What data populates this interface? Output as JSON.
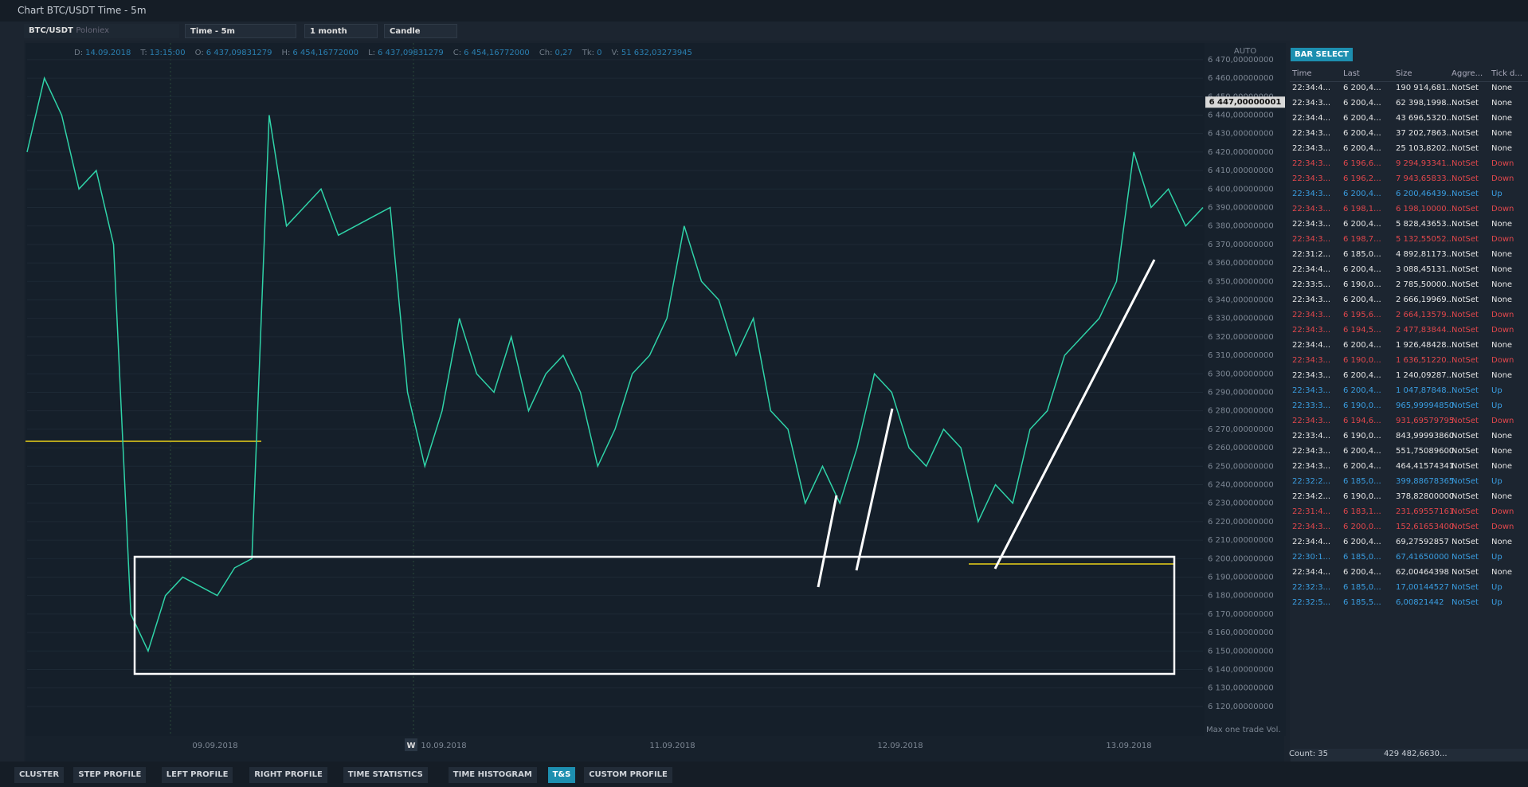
{
  "window": {
    "title": "Chart BTC/USDT Time - 5m"
  },
  "toolbar": {
    "symbol": "BTC/USDT",
    "exchange": "Poloniex",
    "timeframe": "Time - 5m",
    "period": "1 month",
    "style": "Candle"
  },
  "info_bar": [
    {
      "label": "D:",
      "value": "14.09.2018"
    },
    {
      "label": "T:",
      "value": "13:15:00"
    },
    {
      "label": "O:",
      "value": "6 437,09831279"
    },
    {
      "label": "H:",
      "value": "6 454,16772000"
    },
    {
      "label": "L:",
      "value": "6 437,09831279"
    },
    {
      "label": "C:",
      "value": "6 454,16772000"
    },
    {
      "label": "Ch:",
      "value": "0,27"
    },
    {
      "label": "Tk:",
      "value": "0"
    },
    {
      "label": "V:",
      "value": "51 632,03273945"
    }
  ],
  "chart_data": {
    "type": "line",
    "color": "#2fd3a8",
    "values": [
      6420,
      6460,
      6440,
      6400,
      6410,
      6370,
      6170,
      6150,
      6180,
      6190,
      6185,
      6180,
      6195,
      6200,
      6440,
      6380,
      6390,
      6400,
      6375,
      6380,
      6385,
      6390,
      6290,
      6250,
      6280,
      6330,
      6300,
      6290,
      6320,
      6280,
      6300,
      6310,
      6290,
      6250,
      6270,
      6300,
      6310,
      6330,
      6380,
      6350,
      6340,
      6310,
      6330,
      6280,
      6270,
      6230,
      6250,
      6230,
      6260,
      6300,
      6290,
      6260,
      6250,
      6270,
      6260,
      6220,
      6240,
      6230,
      6270,
      6280,
      6310,
      6320,
      6330,
      6350,
      6420,
      6390,
      6400,
      6380,
      6390
    ],
    "ylim": [
      6104,
      6479
    ],
    "yticks": [
      {
        "value": 6470,
        "label": "6 470,00000000"
      },
      {
        "value": 6460,
        "label": "6 460,00000000"
      },
      {
        "value": 6450,
        "label": "6 450,00000000"
      },
      {
        "value": 6440,
        "label": "6 440,00000000"
      },
      {
        "value": 6430,
        "label": "6 430,00000000"
      },
      {
        "value": 6420,
        "label": "6 420,00000000"
      },
      {
        "value": 6410,
        "label": "6 410,00000000"
      },
      {
        "value": 6400,
        "label": "6 400,00000000"
      },
      {
        "value": 6390,
        "label": "6 390,00000000"
      },
      {
        "value": 6380,
        "label": "6 380,00000000"
      },
      {
        "value": 6370,
        "label": "6 370,00000000"
      },
      {
        "value": 6360,
        "label": "6 360,00000000"
      },
      {
        "value": 6350,
        "label": "6 350,00000000"
      },
      {
        "value": 6340,
        "label": "6 340,00000000"
      },
      {
        "value": 6330,
        "label": "6 330,00000000"
      },
      {
        "value": 6320,
        "label": "6 320,00000000"
      },
      {
        "value": 6310,
        "label": "6 310,00000000"
      },
      {
        "value": 6300,
        "label": "6 300,00000000"
      },
      {
        "value": 6290,
        "label": "6 290,00000000"
      },
      {
        "value": 6280,
        "label": "6 280,00000000"
      },
      {
        "value": 6270,
        "label": "6 270,00000000"
      },
      {
        "value": 6260,
        "label": "6 260,00000000"
      },
      {
        "value": 6250,
        "label": "6 250,00000000"
      },
      {
        "value": 6240,
        "label": "6 240,00000000"
      },
      {
        "value": 6230,
        "label": "6 230,00000000"
      },
      {
        "value": 6220,
        "label": "6 220,00000000"
      },
      {
        "value": 6210,
        "label": "6 210,00000000"
      },
      {
        "value": 6200,
        "label": "6 200,00000000"
      },
      {
        "value": 6190,
        "label": "6 190,00000000"
      },
      {
        "value": 6180,
        "label": "6 180,00000000"
      },
      {
        "value": 6170,
        "label": "6 170,00000000"
      },
      {
        "value": 6160,
        "label": "6 160,00000000"
      },
      {
        "value": 6150,
        "label": "6 150,00000000"
      },
      {
        "value": 6140,
        "label": "6 140,00000000"
      },
      {
        "value": 6130,
        "label": "6 130,00000000"
      },
      {
        "value": 6120,
        "label": "6 120,00000000"
      }
    ],
    "x_labels": [
      "09.09.2018",
      "10.09.2018",
      "11.09.2018",
      "12.09.2018",
      "13.09.2018"
    ],
    "week_marker": "W",
    "scale_mode": "AUTO",
    "last_price": {
      "value": 6447.00000001,
      "label": "6 447,00000001"
    },
    "footer": "Max one trade Vol."
  },
  "ts": {
    "button": "BAR SELECT",
    "columns": [
      "Time",
      "Last",
      "Size",
      "Aggre...",
      "Tick d..."
    ],
    "rows": [
      [
        "22:34:4...",
        "6 200,4...",
        "190 914,681...",
        "NotSet",
        "None",
        "#e6e6e6"
      ],
      [
        "22:34:3...",
        "6 200,4...",
        "62 398,1998...",
        "NotSet",
        "None",
        "#e6e6e6"
      ],
      [
        "22:34:4...",
        "6 200,4...",
        "43 696,5320...",
        "NotSet",
        "None",
        "#e6e6e6"
      ],
      [
        "22:34:3...",
        "6 200,4...",
        "37 202,7863...",
        "NotSet",
        "None",
        "#e6e6e6"
      ],
      [
        "22:34:3...",
        "6 200,4...",
        "25 103,8202...",
        "NotSet",
        "None",
        "#e6e6e6"
      ],
      [
        "22:34:3...",
        "6 196,6...",
        "9 294,93341...",
        "NotSet",
        "Down",
        "#e0474c"
      ],
      [
        "22:34:3...",
        "6 196,2...",
        "7 943,65833...",
        "NotSet",
        "Down",
        "#e0474c"
      ],
      [
        "22:34:3...",
        "6 200,4...",
        "6 200,46439...",
        "NotSet",
        "Up",
        "#3a9de0"
      ],
      [
        "22:34:3...",
        "6 198,1...",
        "6 198,10000...",
        "NotSet",
        "Down",
        "#e0474c"
      ],
      [
        "22:34:3...",
        "6 200,4...",
        "5 828,43653...",
        "NotSet",
        "None",
        "#e6e6e6"
      ],
      [
        "22:34:3...",
        "6 198,7...",
        "5 132,55052...",
        "NotSet",
        "Down",
        "#e0474c"
      ],
      [
        "22:31:2...",
        "6 185,0...",
        "4 892,81173...",
        "NotSet",
        "None",
        "#e6e6e6"
      ],
      [
        "22:34:4...",
        "6 200,4...",
        "3 088,45131...",
        "NotSet",
        "None",
        "#e6e6e6"
      ],
      [
        "22:33:5...",
        "6 190,0...",
        "2 785,50000...",
        "NotSet",
        "None",
        "#e6e6e6"
      ],
      [
        "22:34:3...",
        "6 200,4...",
        "2 666,19969...",
        "NotSet",
        "None",
        "#e6e6e6"
      ],
      [
        "22:34:3...",
        "6 195,6...",
        "2 664,13579...",
        "NotSet",
        "Down",
        "#e0474c"
      ],
      [
        "22:34:3...",
        "6 194,5...",
        "2 477,83844...",
        "NotSet",
        "Down",
        "#e0474c"
      ],
      [
        "22:34:4...",
        "6 200,4...",
        "1 926,48428...",
        "NotSet",
        "None",
        "#e6e6e6"
      ],
      [
        "22:34:3...",
        "6 190,0...",
        "1 636,51220...",
        "NotSet",
        "Down",
        "#e0474c"
      ],
      [
        "22:34:3...",
        "6 200,4...",
        "1 240,09287...",
        "NotSet",
        "None",
        "#e6e6e6"
      ],
      [
        "22:34:3...",
        "6 200,4...",
        "1 047,87848...",
        "NotSet",
        "Up",
        "#3a9de0"
      ],
      [
        "22:33:3...",
        "6 190,0...",
        "965,99994850",
        "NotSet",
        "Up",
        "#3a9de0"
      ],
      [
        "22:34:3...",
        "6 194,6...",
        "931,69579795",
        "NotSet",
        "Down",
        "#e0474c"
      ],
      [
        "22:33:4...",
        "6 190,0...",
        "843,99993860",
        "NotSet",
        "None",
        "#e6e6e6"
      ],
      [
        "22:34:3...",
        "6 200,4...",
        "551,75089600",
        "NotSet",
        "None",
        "#e6e6e6"
      ],
      [
        "22:34:3...",
        "6 200,4...",
        "464,41574341",
        "NotSet",
        "None",
        "#e6e6e6"
      ],
      [
        "22:32:2...",
        "6 185,0...",
        "399,88678365",
        "NotSet",
        "Up",
        "#3a9de0"
      ],
      [
        "22:34:2...",
        "6 190,0...",
        "378,82800000",
        "NotSet",
        "None",
        "#e6e6e6"
      ],
      [
        "22:31:4...",
        "6 183,1...",
        "231,69557161",
        "NotSet",
        "Down",
        "#e0474c"
      ],
      [
        "22:34:3...",
        "6 200,0...",
        "152,61653400",
        "NotSet",
        "Down",
        "#e0474c"
      ],
      [
        "22:34:4...",
        "6 200,4...",
        "69,27592857",
        "NotSet",
        "None",
        "#e6e6e6"
      ],
      [
        "22:30:1...",
        "6 185,0...",
        "67,41650000",
        "NotSet",
        "Up",
        "#3a9de0"
      ],
      [
        "22:34:4...",
        "6 200,4...",
        "62,00464398",
        "NotSet",
        "None",
        "#e6e6e6"
      ],
      [
        "22:32:3...",
        "6 185,0...",
        "17,00144527",
        "NotSet",
        "Up",
        "#3a9de0"
      ],
      [
        "22:32:5...",
        "6 185,5...",
        "6,00821442",
        "NotSet",
        "Up",
        "#3a9de0"
      ]
    ],
    "count_label": "Count:",
    "count": 35,
    "total": "429 482,6630..."
  },
  "tabs": [
    "CLUSTER",
    "STEP PROFILE",
    "LEFT PROFILE",
    "RIGHT PROFILE",
    "TIME STATISTICS",
    "TIME HISTOGRAM",
    "T&S",
    "CUSTOM PROFILE"
  ]
}
